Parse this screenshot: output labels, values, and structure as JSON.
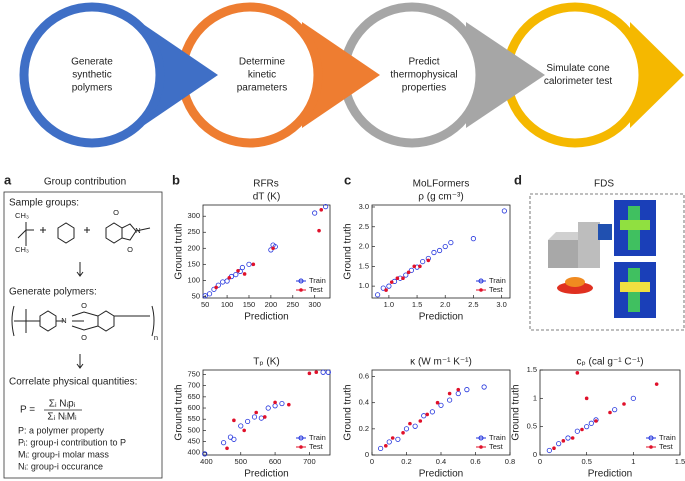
{
  "flow": [
    [
      "Generate",
      "synthetic",
      "polymers"
    ],
    [
      "Determine",
      "kinetic",
      "parameters"
    ],
    [
      "Predict",
      "thermophysical",
      "properties"
    ],
    [
      "Simulate cone",
      "calorimeter test"
    ]
  ],
  "panels": {
    "a": {
      "label": "a",
      "title": "Group contribution",
      "steps": [
        "Sample groups:",
        "Generate polymers:",
        "Correlate physical quantities:"
      ],
      "formula": {
        "lhs": "P =",
        "num": "Σᵢ Nᵢpᵢ",
        "den": "Σᵢ NᵢMᵢ"
      },
      "definitions": [
        "P: a polymer property",
        "Pᵢ: group-i contribution to P",
        "Mᵢ: group-i molar mass",
        "Nᵢ: group-i occurance"
      ],
      "chem": [
        "O",
        "O",
        "N",
        "CH₃",
        "CH₃",
        "N",
        "O",
        "O",
        "n"
      ]
    },
    "b": {
      "label": "b",
      "title": "RFRs"
    },
    "c": {
      "label": "c",
      "title": "MoLFormers"
    },
    "d": {
      "label": "d",
      "title": "FDS"
    }
  },
  "chart_data": [
    {
      "type": "scatter",
      "title": "dT (K)",
      "xlabel": "Prediction",
      "ylabel": "Ground truth",
      "legend": "lower right",
      "xlim": [
        45,
        335
      ],
      "ylim": [
        45,
        335
      ],
      "xticks": [
        50,
        100,
        150,
        200,
        250,
        300
      ],
      "yticks": [
        50,
        100,
        150,
        200,
        250,
        300
      ],
      "series": [
        {
          "name": "Train",
          "color": "#2233dd",
          "x": [
            50,
            60,
            70,
            80,
            90,
            100,
            110,
            120,
            130,
            135,
            150,
            200,
            205,
            210,
            300,
            325
          ],
          "values": [
            52,
            58,
            72,
            85,
            95,
            98,
            112,
            118,
            128,
            140,
            150,
            195,
            210,
            205,
            310,
            330
          ]
        },
        {
          "name": "Test",
          "color": "#e0102a",
          "x": [
            75,
            105,
            125,
            140,
            160,
            205,
            310,
            315
          ],
          "values": [
            78,
            108,
            130,
            120,
            150,
            200,
            255,
            320
          ]
        }
      ]
    },
    {
      "type": "scatter",
      "title": "Tₚ (K)",
      "xlabel": "Prediction",
      "ylabel": "Ground truth",
      "legend": "lower right",
      "xlim": [
        390,
        760
      ],
      "ylim": [
        390,
        770
      ],
      "xticks": [
        400,
        500,
        600,
        700
      ],
      "yticks": [
        400,
        450,
        500,
        550,
        600,
        650,
        700,
        750
      ],
      "series": [
        {
          "name": "Train",
          "color": "#2233dd",
          "x": [
            395,
            450,
            470,
            480,
            500,
            520,
            540,
            560,
            580,
            600,
            620,
            740,
            755
          ],
          "values": [
            395,
            445,
            470,
            460,
            520,
            540,
            560,
            555,
            600,
            610,
            620,
            760,
            760
          ]
        },
        {
          "name": "Test",
          "color": "#e0102a",
          "x": [
            460,
            480,
            510,
            545,
            570,
            600,
            640,
            700,
            720
          ],
          "values": [
            420,
            545,
            500,
            580,
            560,
            625,
            615,
            755,
            760
          ]
        }
      ]
    },
    {
      "type": "scatter",
      "title": "ρ (g cm⁻³)",
      "xlabel": "Prediction",
      "ylabel": "Ground truth",
      "legend": "lower right",
      "xlim": [
        0.7,
        3.15
      ],
      "ylim": [
        0.7,
        3.05
      ],
      "xticks": [
        {
          "value": 1,
          "label": "1.0"
        },
        1.5,
        {
          "value": 2,
          "label": "2.0"
        },
        2.5,
        {
          "value": 3,
          "label": "3.0"
        }
      ],
      "yticks": [
        {
          "value": 1,
          "label": "1.0"
        },
        1.5,
        {
          "value": 2,
          "label": "2.0"
        },
        2.5,
        {
          "value": 3,
          "label": "3.0"
        }
      ],
      "series": [
        {
          "name": "Train",
          "color": "#2233dd",
          "x": [
            0.8,
            0.9,
            1.0,
            1.1,
            1.2,
            1.3,
            1.4,
            1.5,
            1.6,
            1.7,
            1.8,
            1.9,
            2.0,
            2.1,
            2.5,
            3.05
          ],
          "values": [
            0.78,
            0.95,
            1.0,
            1.12,
            1.2,
            1.28,
            1.4,
            1.48,
            1.62,
            1.7,
            1.85,
            1.9,
            2.0,
            2.1,
            2.2,
            2.9
          ]
        },
        {
          "name": "Test",
          "color": "#e0102a",
          "x": [
            0.95,
            1.05,
            1.15,
            1.25,
            1.35,
            1.45,
            1.55,
            1.7
          ],
          "values": [
            0.9,
            1.1,
            1.2,
            1.2,
            1.35,
            1.5,
            1.5,
            1.65
          ]
        }
      ]
    },
    {
      "type": "scatter",
      "title": "κ (W m⁻¹ K⁻¹)",
      "xlabel": "Prediction",
      "ylabel": "Ground truth",
      "legend": "lower right",
      "xlim": [
        0,
        0.8
      ],
      "ylim": [
        0,
        0.65
      ],
      "xticks": [
        0,
        0.2,
        0.4,
        0.6,
        0.8
      ],
      "yticks": [
        0,
        0.2,
        0.4,
        0.6
      ],
      "series": [
        {
          "name": "Train",
          "color": "#2233dd",
          "x": [
            0.05,
            0.1,
            0.15,
            0.2,
            0.25,
            0.3,
            0.35,
            0.4,
            0.45,
            0.5,
            0.55,
            0.65
          ],
          "values": [
            0.05,
            0.1,
            0.12,
            0.2,
            0.22,
            0.3,
            0.33,
            0.38,
            0.42,
            0.47,
            0.5,
            0.52
          ]
        },
        {
          "name": "Test",
          "color": "#e0102a",
          "x": [
            0.08,
            0.12,
            0.18,
            0.22,
            0.28,
            0.32,
            0.38,
            0.45,
            0.5
          ],
          "values": [
            0.07,
            0.13,
            0.17,
            0.24,
            0.26,
            0.31,
            0.4,
            0.47,
            0.5
          ]
        }
      ]
    },
    {
      "type": "scatter",
      "title": "cₚ (cal g⁻¹ C⁻¹)",
      "xlabel": "Prediction",
      "ylabel": "Ground truth",
      "legend": "lower right",
      "xlim": [
        0,
        1.5
      ],
      "ylim": [
        0,
        1.5
      ],
      "xticks": [
        0,
        0.5,
        1,
        1.5
      ],
      "yticks": [
        0,
        0.5,
        1,
        1.5
      ],
      "series": [
        {
          "name": "Train",
          "color": "#2233dd",
          "x": [
            0.1,
            0.2,
            0.3,
            0.4,
            0.5,
            0.55,
            0.6,
            0.8,
            1.0
          ],
          "values": [
            0.08,
            0.2,
            0.3,
            0.42,
            0.5,
            0.56,
            0.62,
            0.8,
            1.0
          ]
        },
        {
          "name": "Test",
          "color": "#e0102a",
          "x": [
            0.15,
            0.25,
            0.35,
            0.4,
            0.45,
            0.5,
            0.6,
            0.75,
            0.9,
            1.25
          ],
          "values": [
            0.12,
            0.25,
            0.3,
            1.45,
            0.45,
            1.0,
            0.6,
            0.75,
            0.9,
            1.25
          ]
        }
      ]
    }
  ]
}
